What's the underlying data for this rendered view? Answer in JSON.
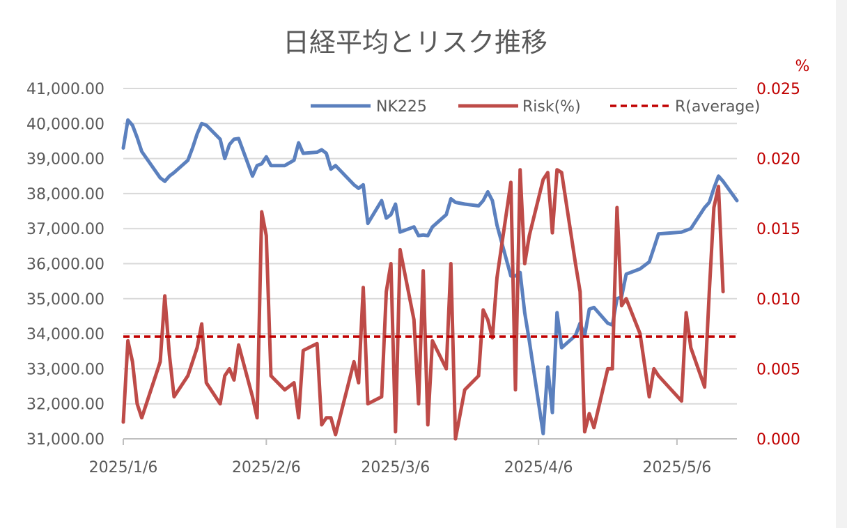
{
  "chart_data": {
    "type": "line",
    "title": "日経平均とリスク推移",
    "y2_unit": "%",
    "x_tick_labels": [
      "2025/1/6",
      "2025/2/6",
      "2025/3/6",
      "2025/4/6",
      "2025/5/6"
    ],
    "y_ticks": [
      "41,000.00",
      "40,000.00",
      "39,000.00",
      "38,000.00",
      "37,000.00",
      "36,000.00",
      "35,000.00",
      "34,000.00",
      "33,000.00",
      "32,000.00",
      "31,000.00"
    ],
    "y2_ticks": [
      "0.025",
      "0.020",
      "0.015",
      "0.010",
      "0.005",
      "0.000"
    ],
    "ylim": [
      31000,
      41000
    ],
    "y2lim": [
      0,
      0.025
    ],
    "grid": true,
    "legend_position": "top-right",
    "series": [
      {
        "name": "NK225",
        "axis": "left",
        "color": "#5b80be",
        "values": [
          [
            "2025-01-06",
            39300
          ],
          [
            "2025-01-07",
            40100
          ],
          [
            "2025-01-08",
            39950
          ],
          [
            "2025-01-09",
            39600
          ],
          [
            "2025-01-10",
            39200
          ],
          [
            "2025-01-14",
            38450
          ],
          [
            "2025-01-15",
            38350
          ],
          [
            "2025-01-16",
            38500
          ],
          [
            "2025-01-17",
            38600
          ],
          [
            "2025-01-20",
            38950
          ],
          [
            "2025-01-21",
            39300
          ],
          [
            "2025-01-22",
            39700
          ],
          [
            "2025-01-23",
            40000
          ],
          [
            "2025-01-24",
            39950
          ],
          [
            "2025-01-27",
            39550
          ],
          [
            "2025-01-28",
            39000
          ],
          [
            "2025-01-29",
            39400
          ],
          [
            "2025-01-30",
            39550
          ],
          [
            "2025-01-31",
            39570
          ],
          [
            "2025-02-03",
            38500
          ],
          [
            "2025-02-04",
            38800
          ],
          [
            "2025-02-05",
            38850
          ],
          [
            "2025-02-06",
            39050
          ],
          [
            "2025-02-07",
            38800
          ],
          [
            "2025-02-10",
            38800
          ],
          [
            "2025-02-12",
            38950
          ],
          [
            "2025-02-13",
            39450
          ],
          [
            "2025-02-14",
            39150
          ],
          [
            "2025-02-17",
            39180
          ],
          [
            "2025-02-18",
            39250
          ],
          [
            "2025-02-19",
            39150
          ],
          [
            "2025-02-20",
            38700
          ],
          [
            "2025-02-21",
            38800
          ],
          [
            "2025-02-25",
            38250
          ],
          [
            "2025-02-26",
            38150
          ],
          [
            "2025-02-27",
            38250
          ],
          [
            "2025-02-28",
            37150
          ],
          [
            "2025-03-03",
            37800
          ],
          [
            "2025-03-04",
            37300
          ],
          [
            "2025-03-05",
            37400
          ],
          [
            "2025-03-06",
            37700
          ],
          [
            "2025-03-07",
            36900
          ],
          [
            "2025-03-10",
            37050
          ],
          [
            "2025-03-11",
            36800
          ],
          [
            "2025-03-12",
            36820
          ],
          [
            "2025-03-13",
            36800
          ],
          [
            "2025-03-14",
            37050
          ],
          [
            "2025-03-17",
            37400
          ],
          [
            "2025-03-18",
            37850
          ],
          [
            "2025-03-19",
            37750
          ],
          [
            "2025-03-21",
            37700
          ],
          [
            "2025-03-24",
            37650
          ],
          [
            "2025-03-25",
            37800
          ],
          [
            "2025-03-26",
            38050
          ],
          [
            "2025-03-27",
            37800
          ],
          [
            "2025-03-28",
            37100
          ],
          [
            "2025-03-31",
            35650
          ],
          [
            "2025-04-01",
            35650
          ],
          [
            "2025-04-02",
            35750
          ],
          [
            "2025-04-03",
            34600
          ],
          [
            "2025-04-04",
            33800
          ],
          [
            "2025-04-07",
            31150
          ],
          [
            "2025-04-08",
            33050
          ],
          [
            "2025-04-09",
            31750
          ],
          [
            "2025-04-10",
            34600
          ],
          [
            "2025-04-11",
            33600
          ],
          [
            "2025-04-14",
            33950
          ],
          [
            "2025-04-15",
            34300
          ],
          [
            "2025-04-16",
            33950
          ],
          [
            "2025-04-17",
            34700
          ],
          [
            "2025-04-18",
            34750
          ],
          [
            "2025-04-21",
            34300
          ],
          [
            "2025-04-22",
            34250
          ],
          [
            "2025-04-23",
            35000
          ],
          [
            "2025-04-24",
            35050
          ],
          [
            "2025-04-25",
            35700
          ],
          [
            "2025-04-28",
            35850
          ],
          [
            "2025-04-30",
            36050
          ],
          [
            "2025-05-01",
            36450
          ],
          [
            "2025-05-02",
            36850
          ],
          [
            "2025-05-07",
            36900
          ],
          [
            "2025-05-08",
            36950
          ],
          [
            "2025-05-09",
            37000
          ],
          [
            "2025-05-12",
            37600
          ],
          [
            "2025-05-13",
            37750
          ],
          [
            "2025-05-14",
            38150
          ],
          [
            "2025-05-15",
            38500
          ],
          [
            "2025-05-16",
            38350
          ],
          [
            "2025-05-19",
            37800
          ]
        ]
      },
      {
        "name": "Risk(%)",
        "axis": "right",
        "color": "#be4b48",
        "values": [
          [
            "2025-01-06",
            0.0012
          ],
          [
            "2025-01-07",
            0.007
          ],
          [
            "2025-01-08",
            0.0055
          ],
          [
            "2025-01-09",
            0.0025
          ],
          [
            "2025-01-10",
            0.0015
          ],
          [
            "2025-01-14",
            0.0055
          ],
          [
            "2025-01-15",
            0.0102
          ],
          [
            "2025-01-16",
            0.006
          ],
          [
            "2025-01-17",
            0.003
          ],
          [
            "2025-01-20",
            0.0045
          ],
          [
            "2025-01-21",
            0.0055
          ],
          [
            "2025-01-22",
            0.0065
          ],
          [
            "2025-01-23",
            0.0082
          ],
          [
            "2025-01-24",
            0.004
          ],
          [
            "2025-01-27",
            0.0025
          ],
          [
            "2025-01-28",
            0.0045
          ],
          [
            "2025-01-29",
            0.005
          ],
          [
            "2025-01-30",
            0.0042
          ],
          [
            "2025-01-31",
            0.0067
          ],
          [
            "2025-02-03",
            0.003
          ],
          [
            "2025-02-04",
            0.0015
          ],
          [
            "2025-02-05",
            0.0162
          ],
          [
            "2025-02-06",
            0.0145
          ],
          [
            "2025-02-07",
            0.0045
          ],
          [
            "2025-02-10",
            0.0035
          ],
          [
            "2025-02-12",
            0.004
          ],
          [
            "2025-02-13",
            0.0015
          ],
          [
            "2025-02-14",
            0.0063
          ],
          [
            "2025-02-17",
            0.0068
          ],
          [
            "2025-02-18",
            0.001
          ],
          [
            "2025-02-19",
            0.0015
          ],
          [
            "2025-02-20",
            0.0015
          ],
          [
            "2025-02-21",
            0.0003
          ],
          [
            "2025-02-25",
            0.0055
          ],
          [
            "2025-02-26",
            0.004
          ],
          [
            "2025-02-27",
            0.0108
          ],
          [
            "2025-02-28",
            0.0025
          ],
          [
            "2025-03-03",
            0.003
          ],
          [
            "2025-03-04",
            0.0105
          ],
          [
            "2025-03-05",
            0.0125
          ],
          [
            "2025-03-06",
            0.0005
          ],
          [
            "2025-03-07",
            0.0135
          ],
          [
            "2025-03-10",
            0.0085
          ],
          [
            "2025-03-11",
            0.0025
          ],
          [
            "2025-03-12",
            0.012
          ],
          [
            "2025-03-13",
            0.001
          ],
          [
            "2025-03-14",
            0.007
          ],
          [
            "2025-03-17",
            0.005
          ],
          [
            "2025-03-18",
            0.0125
          ],
          [
            "2025-03-19",
            0
          ],
          [
            "2025-03-21",
            0.0035
          ],
          [
            "2025-03-24",
            0.0045
          ],
          [
            "2025-03-25",
            0.0092
          ],
          [
            "2025-03-26",
            0.0085
          ],
          [
            "2025-03-27",
            0.0072
          ],
          [
            "2025-03-28",
            0.0115
          ],
          [
            "2025-03-31",
            0.0183
          ],
          [
            "2025-04-01",
            0.0035
          ],
          [
            "2025-04-02",
            0.0192
          ],
          [
            "2025-04-03",
            0.0125
          ],
          [
            "2025-04-04",
            0.0145
          ],
          [
            "2025-04-07",
            0.0185
          ],
          [
            "2025-04-08",
            0.019
          ],
          [
            "2025-04-09",
            0.0147
          ],
          [
            "2025-04-10",
            0.0192
          ],
          [
            "2025-04-11",
            0.019
          ],
          [
            "2025-04-14",
            0.0125
          ],
          [
            "2025-04-15",
            0.0105
          ],
          [
            "2025-04-16",
            0.0005
          ],
          [
            "2025-04-17",
            0.0018
          ],
          [
            "2025-04-18",
            0.0008
          ],
          [
            "2025-04-21",
            0.005
          ],
          [
            "2025-04-22",
            0.005
          ],
          [
            "2025-04-23",
            0.0165
          ],
          [
            "2025-04-24",
            0.0095
          ],
          [
            "2025-04-25",
            0.01
          ],
          [
            "2025-04-28",
            0.0075
          ],
          [
            "2025-04-30",
            0.003
          ],
          [
            "2025-05-01",
            0.005
          ],
          [
            "2025-05-02",
            0.0045
          ],
          [
            "2025-05-07",
            0.0027
          ],
          [
            "2025-05-08",
            0.009
          ],
          [
            "2025-05-09",
            0.0065
          ],
          [
            "2025-05-12",
            0.0037
          ],
          [
            "2025-05-13",
            0.0105
          ],
          [
            "2025-05-14",
            0.0165
          ],
          [
            "2025-05-15",
            0.018
          ],
          [
            "2025-05-16",
            0.0105
          ]
        ]
      },
      {
        "name": "R(average)",
        "axis": "right",
        "color": "#c00000",
        "style": "dashed",
        "value": 0.0073
      }
    ]
  }
}
